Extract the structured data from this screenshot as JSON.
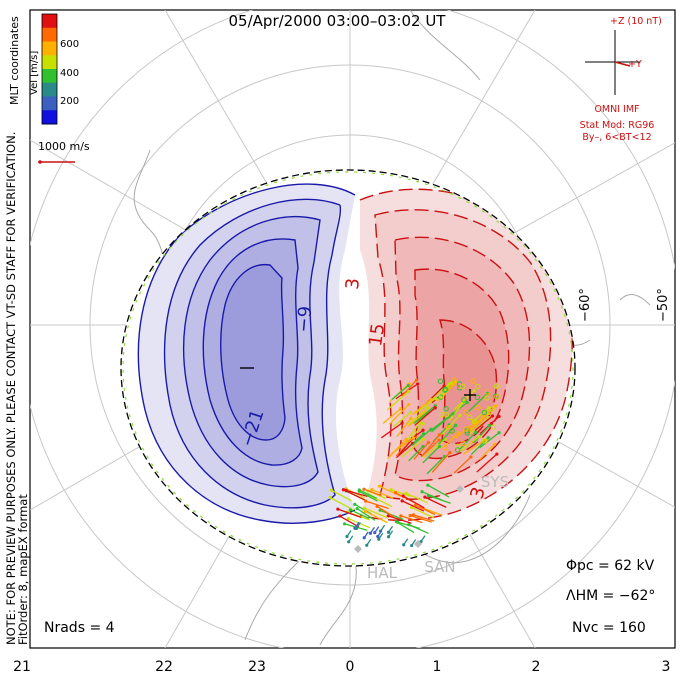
{
  "title": "05/Apr/2000 03:00–03:02 UT",
  "side_note": "NOTE: FOR PREVIEW PURPOSES ONLY. PLEASE CONTACT VT-SD STAFF FOR VERIFICATION.",
  "fit_order": "FitOrder: 8, mapEX format",
  "coord_system": "MLT coordinates",
  "colorbar": {
    "title": "Vel [m/s]",
    "ticks": [
      "600",
      "400",
      "200"
    ],
    "colors": [
      "#e01010",
      "#ff6a00",
      "#ffb000",
      "#c8e000",
      "#30c030",
      "#2a8a8a",
      "#3a60c0",
      "#1010e0"
    ]
  },
  "vector_scale": "1000 m/s",
  "imf": {
    "z_label": "+Z (10 nT)",
    "y_label": "+Y",
    "source": "OMNI IMF",
    "model": "Stat Mod: RG96",
    "condition": "By–, 6<BT<12"
  },
  "lat_labels": [
    "−60°",
    "−50°"
  ],
  "mlt_labels": [
    "21",
    "22",
    "23",
    "0",
    "1",
    "2",
    "3"
  ],
  "stations": [
    "HAL",
    "SAN",
    "SYS"
  ],
  "contours": {
    "negative": [
      "−9",
      "−21"
    ],
    "positive": [
      "3",
      "15",
      "3"
    ]
  },
  "stats": {
    "phi_pc": "Φpc = 62 kV",
    "lambda_hm": "ΛHM = −62°",
    "n_vc": "Nvc = 160",
    "n_rads": "Nrads = 4"
  },
  "colors": {
    "neg_line": "#1a1aaa",
    "pos_line": "#cc1010",
    "grid": "#c8c8c8",
    "coast": "#b0b0b0"
  }
}
